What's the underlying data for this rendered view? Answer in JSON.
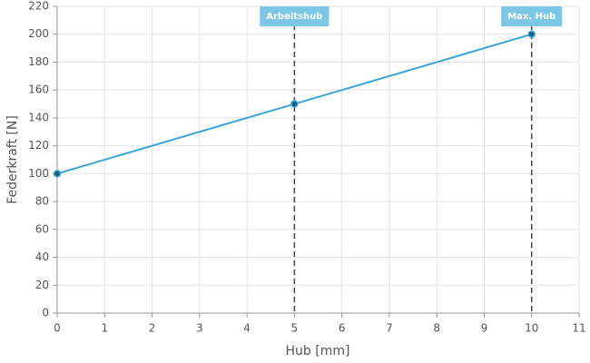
{
  "chart_data": {
    "type": "line",
    "x_label": "Hub [mm]",
    "y_label": "Federkraft [N]",
    "x": [
      0,
      5,
      10
    ],
    "series": [
      {
        "name": "Federkraft",
        "color": "#3aa6d8",
        "values": [
          100,
          150,
          200
        ]
      }
    ],
    "xlim": [
      0,
      11
    ],
    "xticks": [
      0,
      1,
      2,
      3,
      4,
      5,
      6,
      7,
      8,
      9,
      10,
      11
    ],
    "ylim": [
      0,
      220
    ],
    "yticks": [
      0,
      20,
      40,
      60,
      80,
      100,
      120,
      140,
      160,
      180,
      200,
      220
    ],
    "grid": true,
    "annotations": [
      {
        "x": 5,
        "label": "Arbeitshub"
      },
      {
        "x": 10,
        "label": "Max. Hub"
      }
    ],
    "annotation_color": "#7cc6e6"
  }
}
